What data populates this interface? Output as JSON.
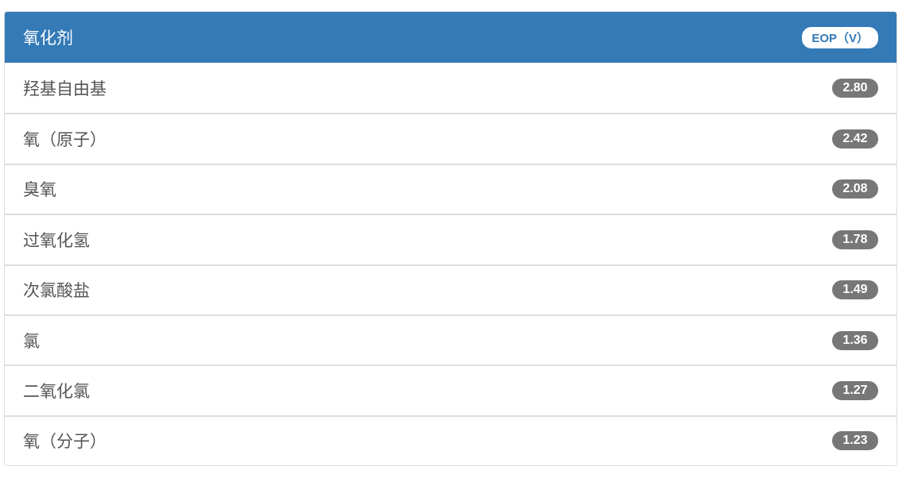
{
  "header": {
    "title": "氧化剂",
    "badge": "EOP（V）"
  },
  "colors": {
    "header_bg": "#337ab7",
    "badge_bg": "#777777"
  },
  "rows": [
    {
      "name": "羟基自由基",
      "value": "2.80"
    },
    {
      "name": "氧（原子）",
      "value": "2.42"
    },
    {
      "name": "臭氧",
      "value": "2.08"
    },
    {
      "name": "过氧化氢",
      "value": "1.78"
    },
    {
      "name": "次氯酸盐",
      "value": "1.49"
    },
    {
      "name": "氯",
      "value": "1.36"
    },
    {
      "name": "二氧化氯",
      "value": "1.27"
    },
    {
      "name": "氧（分子）",
      "value": "1.23"
    }
  ]
}
